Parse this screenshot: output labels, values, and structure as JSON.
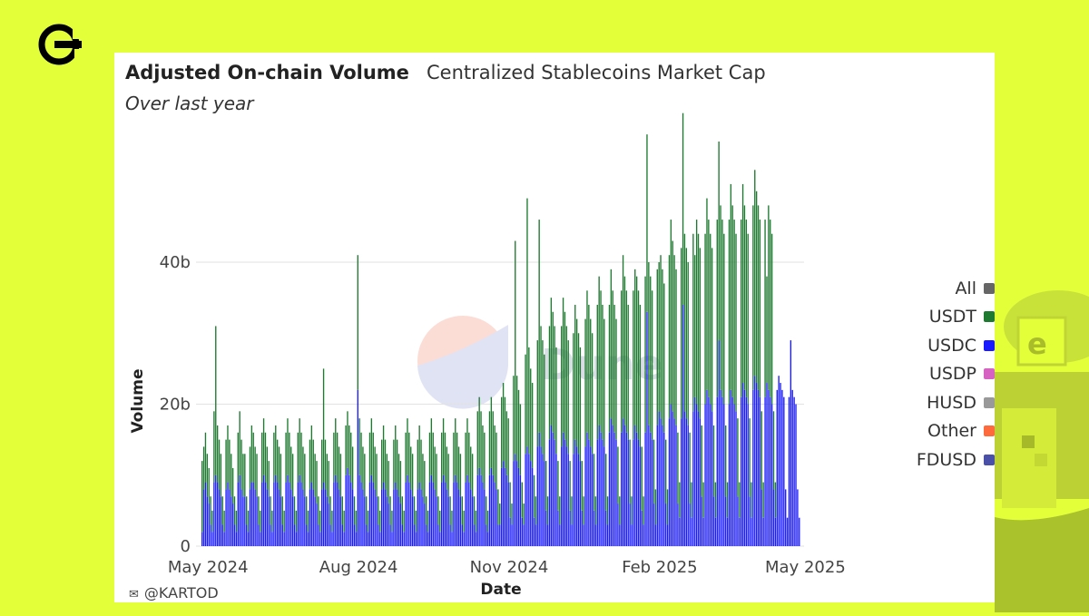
{
  "brand": {
    "logo_icon": "brand-logo-icon",
    "accent": "#e3ff3a"
  },
  "header": {
    "title": "Adjusted On-chain Volume",
    "tab": "Centralized Stablecoins Market Cap",
    "subtitle": "Over last year"
  },
  "credit": {
    "icon": "gun-icon",
    "text": "@KARTOD"
  },
  "watermark": "Dune",
  "chart_data": {
    "type": "bar",
    "stacked": true,
    "xlabel": "Date",
    "ylabel": "Volume",
    "x_start": "2024-04-27",
    "x_end": "2025-04-28",
    "x_ticks": [
      "May 2024",
      "Aug 2024",
      "Nov 2024",
      "Feb 2025",
      "May 2025"
    ],
    "x_tick_dates": [
      "2024-05-01",
      "2024-08-01",
      "2024-11-01",
      "2025-02-01",
      "2025-05-01"
    ],
    "ylim": [
      0,
      57
    ],
    "y_ticks": [
      0,
      20,
      40
    ],
    "y_tick_labels": [
      "0",
      "20b",
      "40b"
    ],
    "grid": true,
    "legend_position": "right",
    "series": [
      {
        "name": "USDC",
        "color": "#1a1aff",
        "values": [
          2,
          8,
          9,
          7,
          6,
          3,
          2,
          9,
          10,
          9,
          8,
          7,
          3,
          2,
          8,
          9,
          8,
          7,
          6,
          3,
          2,
          9,
          10,
          8,
          7,
          7,
          3,
          2,
          8,
          9,
          9,
          8,
          7,
          3,
          2,
          9,
          10,
          9,
          8,
          7,
          3,
          2,
          9,
          10,
          9,
          8,
          7,
          3,
          2,
          9,
          10,
          9,
          8,
          7,
          3,
          2,
          9,
          10,
          9,
          8,
          7,
          3,
          2,
          8,
          9,
          8,
          7,
          6,
          3,
          2,
          8,
          9,
          8,
          7,
          6,
          3,
          2,
          9,
          10,
          9,
          8,
          7,
          3,
          2,
          10,
          11,
          10,
          9,
          8,
          3,
          2,
          22,
          10,
          9,
          8,
          7,
          3,
          2,
          9,
          10,
          9,
          8,
          7,
          3,
          2,
          8,
          9,
          8,
          7,
          6,
          3,
          2,
          8,
          9,
          8,
          7,
          6,
          3,
          2,
          9,
          10,
          9,
          8,
          7,
          3,
          2,
          8,
          9,
          8,
          7,
          6,
          3,
          2,
          9,
          10,
          9,
          8,
          7,
          3,
          2,
          9,
          10,
          9,
          8,
          7,
          3,
          2,
          9,
          10,
          9,
          8,
          7,
          3,
          2,
          9,
          10,
          9,
          8,
          7,
          3,
          2,
          10,
          11,
          10,
          9,
          8,
          3,
          2,
          10,
          11,
          10,
          9,
          8,
          3,
          3,
          11,
          12,
          11,
          10,
          9,
          4,
          3,
          12,
          13,
          12,
          11,
          10,
          4,
          3,
          13,
          14,
          13,
          12,
          11,
          4,
          3,
          14,
          16,
          14,
          13,
          12,
          5,
          3,
          15,
          17,
          16,
          15,
          13,
          5,
          3,
          14,
          16,
          15,
          14,
          13,
          5,
          3,
          13,
          15,
          14,
          13,
          12,
          5,
          3,
          14,
          16,
          15,
          14,
          13,
          5,
          3,
          15,
          17,
          16,
          15,
          14,
          5,
          3,
          16,
          18,
          17,
          16,
          15,
          6,
          3,
          16,
          18,
          17,
          16,
          15,
          6,
          3,
          15,
          17,
          16,
          15,
          14,
          5,
          3,
          16,
          33,
          17,
          16,
          15,
          6,
          3,
          17,
          19,
          18,
          17,
          16,
          6,
          3,
          18,
          20,
          19,
          18,
          17,
          6,
          4,
          18,
          34,
          19,
          18,
          17,
          6,
          4,
          19,
          21,
          20,
          19,
          18,
          7,
          4,
          20,
          22,
          21,
          20,
          19,
          7,
          4,
          21,
          29,
          22,
          21,
          20,
          7,
          4,
          20,
          22,
          21,
          20,
          19,
          7,
          4,
          21,
          23,
          22,
          21,
          20,
          7,
          4,
          22,
          24,
          23,
          22,
          21,
          8,
          4,
          21,
          23,
          22,
          21,
          20,
          8,
          4,
          22,
          24,
          23,
          22,
          21,
          8,
          4,
          21,
          29,
          22,
          21,
          20,
          8,
          4
        ]
      },
      {
        "name": "USDT",
        "color": "#1e7a30",
        "values": [
          10,
          6,
          7,
          6,
          5,
          4,
          3,
          10,
          21,
          8,
          7,
          6,
          4,
          3,
          7,
          8,
          7,
          6,
          5,
          4,
          3,
          7,
          9,
          7,
          6,
          6,
          4,
          3,
          6,
          8,
          7,
          6,
          6,
          4,
          3,
          7,
          8,
          7,
          6,
          5,
          4,
          3,
          7,
          7,
          6,
          6,
          6,
          4,
          3,
          7,
          8,
          7,
          6,
          6,
          4,
          3,
          7,
          8,
          7,
          6,
          6,
          4,
          3,
          7,
          8,
          7,
          6,
          6,
          4,
          3,
          7,
          16,
          7,
          6,
          6,
          4,
          3,
          7,
          8,
          7,
          6,
          6,
          4,
          3,
          7,
          8,
          7,
          7,
          6,
          4,
          3,
          19,
          8,
          7,
          6,
          6,
          4,
          3,
          7,
          8,
          7,
          6,
          6,
          4,
          3,
          7,
          8,
          7,
          6,
          6,
          4,
          3,
          7,
          8,
          7,
          6,
          6,
          4,
          3,
          7,
          8,
          7,
          6,
          6,
          4,
          3,
          7,
          8,
          7,
          6,
          6,
          4,
          3,
          7,
          8,
          7,
          6,
          6,
          4,
          3,
          7,
          8,
          7,
          6,
          6,
          4,
          3,
          7,
          8,
          7,
          6,
          6,
          4,
          3,
          7,
          8,
          7,
          6,
          6,
          4,
          3,
          9,
          10,
          9,
          8,
          8,
          4,
          3,
          9,
          10,
          9,
          8,
          8,
          5,
          3,
          10,
          11,
          10,
          9,
          9,
          5,
          3,
          12,
          30,
          12,
          11,
          10,
          5,
          3,
          14,
          35,
          15,
          13,
          12,
          6,
          4,
          15,
          30,
          17,
          16,
          15,
          7,
          4,
          16,
          18,
          17,
          16,
          15,
          7,
          4,
          17,
          19,
          18,
          17,
          16,
          7,
          4,
          17,
          19,
          18,
          17,
          16,
          7,
          4,
          18,
          20,
          19,
          18,
          17,
          8,
          4,
          19,
          21,
          20,
          19,
          18,
          8,
          4,
          18,
          21,
          19,
          18,
          17,
          8,
          4,
          20,
          23,
          21,
          20,
          19,
          9,
          4,
          21,
          22,
          22,
          21,
          20,
          9,
          4,
          22,
          25,
          23,
          22,
          21,
          9,
          5,
          22,
          21,
          23,
          22,
          21,
          9,
          5,
          23,
          26,
          24,
          23,
          22,
          10,
          5,
          24,
          27,
          25,
          24,
          23,
          10,
          5,
          25,
          20,
          26,
          25,
          24,
          10,
          5,
          24,
          27,
          25,
          24,
          23,
          10,
          5,
          25,
          28,
          26,
          25,
          24,
          10,
          5,
          26,
          29,
          27,
          26,
          25,
          11,
          5,
          25,
          28,
          26,
          25,
          24,
          11,
          5,
          26,
          29,
          27,
          26,
          25,
          11,
          5,
          25,
          15,
          26,
          25,
          24,
          11,
          5
        ]
      },
      {
        "name": "All",
        "color": "#666666",
        "values": []
      },
      {
        "name": "USDP",
        "color": "#d663c1",
        "values": []
      },
      {
        "name": "HUSD",
        "color": "#999999",
        "values": []
      },
      {
        "name": "Other",
        "color": "#ff6a3d",
        "values": []
      },
      {
        "name": "FDUSD",
        "color": "#4a4fa8",
        "values": []
      }
    ]
  }
}
